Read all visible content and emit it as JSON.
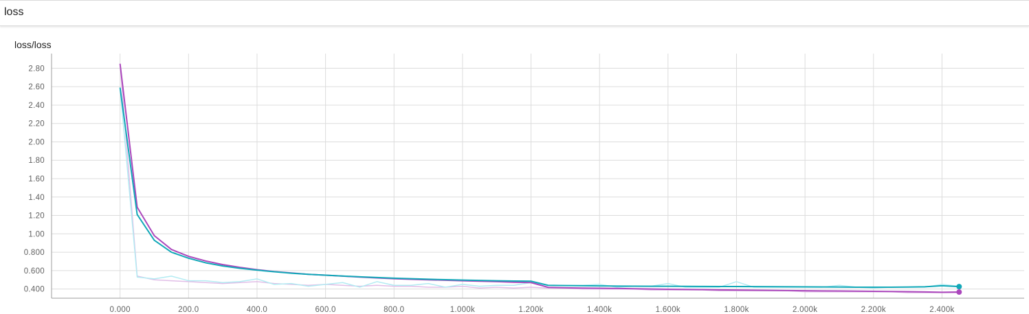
{
  "section": {
    "title": "loss"
  },
  "card": {
    "title": "loss/loss"
  },
  "chart_data": {
    "type": "line",
    "title": "loss/loss",
    "xlabel": "",
    "ylabel": "",
    "xlim": [
      -200,
      2640
    ],
    "ylim": [
      0.3,
      2.96
    ],
    "x_ticks": [
      0,
      200,
      400,
      600,
      800,
      1000,
      1200,
      1400,
      1600,
      1800,
      2000,
      2200,
      2400
    ],
    "x_tick_labels": [
      "0.000",
      "200.0",
      "400.0",
      "600.0",
      "800.0",
      "1.000k",
      "1.200k",
      "1.400k",
      "1.600k",
      "1.800k",
      "2.000k",
      "2.200k",
      "2.400k"
    ],
    "y_ticks": [
      0.4,
      0.6,
      0.8,
      1.0,
      1.2,
      1.4,
      1.6,
      1.8,
      2.0,
      2.2,
      2.4,
      2.6,
      2.8
    ],
    "y_tick_labels": [
      "0.400",
      "0.600",
      "0.800",
      "1.00",
      "1.20",
      "1.40",
      "1.60",
      "1.80",
      "2.00",
      "2.20",
      "2.40",
      "2.60",
      "2.80"
    ],
    "grid": true,
    "series": [
      {
        "color": "#ab47bc",
        "raw_color": "#e1bee7",
        "raw": {
          "x": [
            0,
            50,
            100,
            150,
            200,
            250,
            300,
            350,
            400,
            450,
            500,
            550,
            600,
            650,
            700,
            750,
            800,
            850,
            900,
            950,
            1000,
            1050,
            1100,
            1150,
            1200,
            1250,
            1300,
            1350,
            1400,
            1450,
            1500,
            1550,
            1600,
            1650,
            1700,
            1750,
            1800,
            1850,
            1900,
            1950,
            2000,
            2050,
            2100,
            2150,
            2200,
            2250,
            2300,
            2350,
            2400,
            2450
          ],
          "y": [
            2.85,
            0.54,
            0.5,
            0.49,
            0.48,
            0.47,
            0.46,
            0.47,
            0.48,
            0.46,
            0.45,
            0.44,
            0.45,
            0.44,
            0.43,
            0.44,
            0.43,
            0.43,
            0.42,
            0.42,
            0.43,
            0.41,
            0.42,
            0.41,
            0.42,
            0.41,
            0.41,
            0.4,
            0.4,
            0.4,
            0.4,
            0.39,
            0.39,
            0.39,
            0.39,
            0.38,
            0.38,
            0.38,
            0.38,
            0.38,
            0.37,
            0.37,
            0.37,
            0.37,
            0.37,
            0.37,
            0.36,
            0.36,
            0.36,
            0.36
          ]
        },
        "smoothed": {
          "x": [
            0,
            50,
            100,
            150,
            200,
            250,
            300,
            350,
            400,
            450,
            500,
            550,
            600,
            650,
            700,
            750,
            800,
            850,
            900,
            950,
            1000,
            1050,
            1100,
            1150,
            1200,
            1250,
            1300,
            1350,
            1400,
            1450,
            1500,
            1550,
            1600,
            1650,
            1700,
            1750,
            1800,
            1850,
            1900,
            1950,
            2000,
            2050,
            2100,
            2150,
            2200,
            2250,
            2300,
            2350,
            2400,
            2450
          ],
          "y": [
            2.85,
            1.29,
            0.98,
            0.83,
            0.755,
            0.705,
            0.665,
            0.635,
            0.61,
            0.59,
            0.575,
            0.56,
            0.55,
            0.54,
            0.53,
            0.52,
            0.512,
            0.505,
            0.5,
            0.495,
            0.49,
            0.485,
            0.48,
            0.474,
            0.47,
            0.418,
            0.413,
            0.41,
            0.408,
            0.406,
            0.403,
            0.4,
            0.397,
            0.395,
            0.393,
            0.391,
            0.389,
            0.387,
            0.385,
            0.383,
            0.381,
            0.379,
            0.378,
            0.377,
            0.375,
            0.373,
            0.371,
            0.368,
            0.364,
            0.367
          ]
        }
      },
      {
        "color": "#12a8b8",
        "raw_color": "#b2ebf2",
        "raw": {
          "x": [
            0,
            50,
            100,
            150,
            200,
            250,
            300,
            350,
            400,
            450,
            500,
            550,
            600,
            650,
            700,
            750,
            800,
            850,
            900,
            950,
            1000,
            1050,
            1100,
            1150,
            1200,
            1250,
            1300,
            1350,
            1400,
            1450,
            1500,
            1550,
            1600,
            1650,
            1700,
            1750,
            1800,
            1850,
            1900,
            1950,
            2000,
            2050,
            2100,
            2150,
            2200,
            2250,
            2300,
            2350,
            2400,
            2450
          ],
          "y": [
            2.59,
            0.53,
            0.51,
            0.54,
            0.49,
            0.49,
            0.47,
            0.48,
            0.51,
            0.45,
            0.46,
            0.43,
            0.45,
            0.47,
            0.42,
            0.48,
            0.44,
            0.44,
            0.46,
            0.42,
            0.45,
            0.43,
            0.44,
            0.44,
            0.47,
            0.44,
            0.44,
            0.44,
            0.45,
            0.42,
            0.43,
            0.43,
            0.46,
            0.42,
            0.42,
            0.42,
            0.48,
            0.42,
            0.42,
            0.42,
            0.42,
            0.42,
            0.44,
            0.42,
            0.41,
            0.42,
            0.42,
            0.42,
            0.45,
            0.43
          ]
        },
        "smoothed": {
          "x": [
            0,
            50,
            100,
            150,
            200,
            250,
            300,
            350,
            400,
            450,
            500,
            550,
            600,
            650,
            700,
            750,
            800,
            850,
            900,
            950,
            1000,
            1050,
            1100,
            1150,
            1200,
            1250,
            1300,
            1350,
            1400,
            1450,
            1500,
            1550,
            1600,
            1650,
            1700,
            1750,
            1800,
            1850,
            1900,
            1950,
            2000,
            2050,
            2100,
            2150,
            2200,
            2250,
            2300,
            2350,
            2400,
            2450
          ],
          "y": [
            2.59,
            1.21,
            0.93,
            0.8,
            0.735,
            0.685,
            0.65,
            0.625,
            0.605,
            0.588,
            0.572,
            0.56,
            0.55,
            0.541,
            0.533,
            0.525,
            0.518,
            0.512,
            0.506,
            0.502,
            0.497,
            0.493,
            0.49,
            0.487,
            0.485,
            0.44,
            0.437,
            0.435,
            0.434,
            0.432,
            0.431,
            0.43,
            0.43,
            0.429,
            0.428,
            0.427,
            0.427,
            0.426,
            0.425,
            0.424,
            0.423,
            0.422,
            0.421,
            0.42,
            0.42,
            0.42,
            0.421,
            0.424,
            0.435,
            0.426
          ]
        }
      }
    ]
  }
}
